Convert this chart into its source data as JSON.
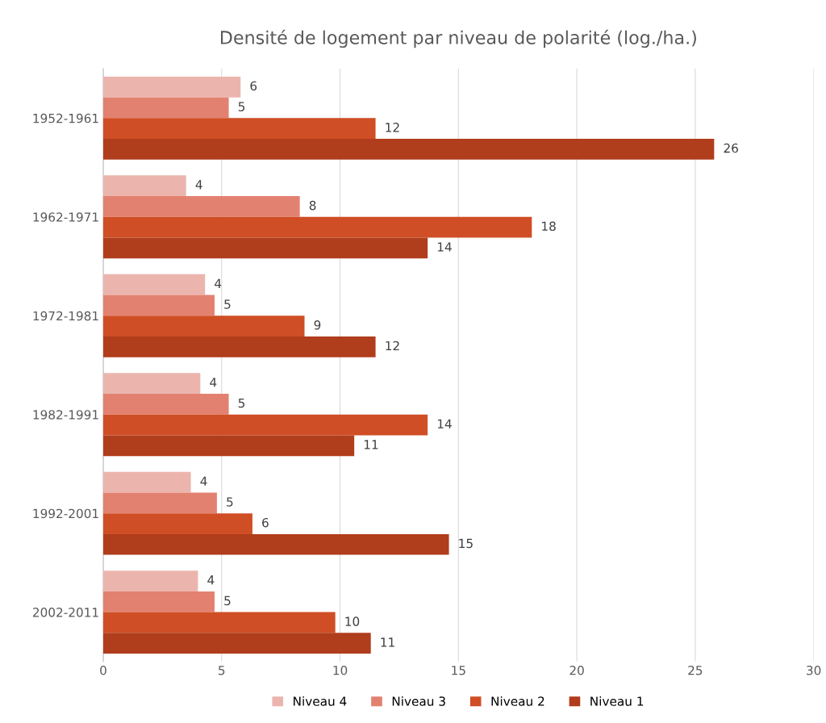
{
  "chart_data": {
    "type": "bar",
    "orientation": "horizontal",
    "title": "Densité de logement par niveau de polarité (log./ha.)",
    "categories": [
      "1952-1961",
      "1962-1971",
      "1972-1981",
      "1982-1991",
      "1992-2001",
      "2002-2011"
    ],
    "series": [
      {
        "name": "Niveau 4",
        "color": "#ebb5ae",
        "values": [
          5.8,
          3.5,
          4.3,
          4.1,
          3.7,
          4.0
        ],
        "value_labels": [
          "6",
          "4",
          "4",
          "4",
          "4",
          "4"
        ]
      },
      {
        "name": "Niveau 3",
        "color": "#e38170",
        "values": [
          5.3,
          8.3,
          4.7,
          5.3,
          4.8,
          4.7
        ],
        "value_labels": [
          "5",
          "8",
          "5",
          "5",
          "5",
          "5"
        ]
      },
      {
        "name": "Niveau 2",
        "color": "#d04e25",
        "values": [
          11.5,
          18.1,
          8.5,
          13.7,
          6.3,
          9.8
        ],
        "value_labels": [
          "12",
          "18",
          "9",
          "14",
          "6",
          "10"
        ]
      },
      {
        "name": "Niveau 1",
        "color": "#b03d1c",
        "values": [
          25.8,
          13.7,
          11.5,
          10.6,
          14.6,
          11.3
        ],
        "value_labels": [
          "26",
          "14",
          "12",
          "11",
          "15",
          "11"
        ]
      }
    ],
    "xlim": [
      0,
      30
    ],
    "xticks": [
      0,
      5,
      10,
      15,
      20,
      25,
      30
    ],
    "grid": "x",
    "legend": "bottom"
  }
}
